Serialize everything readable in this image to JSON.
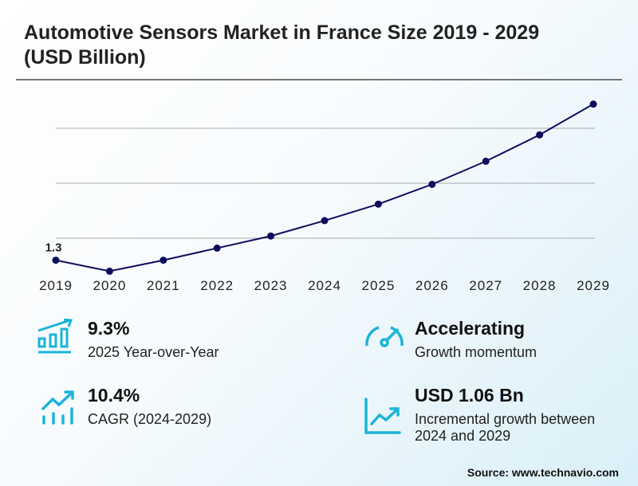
{
  "title": "Automotive Sensors Market in France Size 2019 - 2029 (USD Billion)",
  "chart_data": {
    "type": "line",
    "title": "Automotive Sensors Market in France Size 2019 - 2029 (USD Billion)",
    "categories": [
      "2019",
      "2020",
      "2021",
      "2022",
      "2023",
      "2024",
      "2025",
      "2026",
      "2027",
      "2028",
      "2029"
    ],
    "values": [
      1.3,
      1.2,
      1.3,
      1.41,
      1.52,
      1.66,
      1.81,
      1.99,
      2.2,
      2.44,
      2.72
    ],
    "data_labels": [
      {
        "category": "2019",
        "text": "1.3"
      }
    ],
    "gridlines": [
      1.5,
      2.0,
      2.5
    ],
    "grid": true,
    "line_color": "#0d0d5e",
    "xlabel": "",
    "ylabel": ""
  },
  "kpis": [
    {
      "value": "9.3%",
      "label": "2025 Year-over-Year",
      "icon": "bar-chart-growth-icon"
    },
    {
      "value": "Accelerating",
      "label": "Growth momentum",
      "icon": "speedometer-icon"
    },
    {
      "value": "10.4%",
      "label": "CAGR (2024-2029)",
      "icon": "trend-up-bars-icon"
    },
    {
      "value": "USD 1.06 Bn",
      "label": "Incremental growth between 2024 and 2029",
      "icon": "line-chart-up-icon"
    }
  ],
  "accent_color": "#1bb4d6",
  "source": "Source: www.technavio.com"
}
